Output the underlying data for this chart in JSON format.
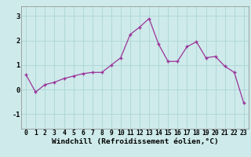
{
  "x": [
    0,
    1,
    2,
    3,
    4,
    5,
    6,
    7,
    8,
    9,
    10,
    11,
    12,
    13,
    14,
    15,
    16,
    17,
    18,
    19,
    20,
    21,
    22,
    23
  ],
  "y": [
    0.6,
    -0.1,
    0.2,
    0.3,
    0.45,
    0.55,
    0.65,
    0.7,
    0.7,
    1.0,
    1.3,
    2.25,
    2.55,
    2.9,
    1.85,
    1.15,
    1.15,
    1.75,
    1.95,
    1.3,
    1.35,
    0.95,
    0.7,
    -0.55
  ],
  "xlim": [
    -0.5,
    23.5
  ],
  "ylim": [
    -1.6,
    3.4
  ],
  "yticks": [
    -1,
    0,
    1,
    2,
    3
  ],
  "xtick_labels": [
    "0",
    "1",
    "2",
    "3",
    "4",
    "5",
    "6",
    "7",
    "8",
    "9",
    "10",
    "11",
    "12",
    "13",
    "14",
    "15",
    "16",
    "17",
    "18",
    "19",
    "20",
    "21",
    "22",
    "23"
  ],
  "xlabel": "Windchill (Refroidissement éolien,°C)",
  "line_color": "#993399",
  "marker": "+",
  "bg_color": "#ceeaea",
  "grid_color": "#b0d8d8",
  "tick_label_fontsize": 5.8,
  "xlabel_fontsize": 6.8
}
